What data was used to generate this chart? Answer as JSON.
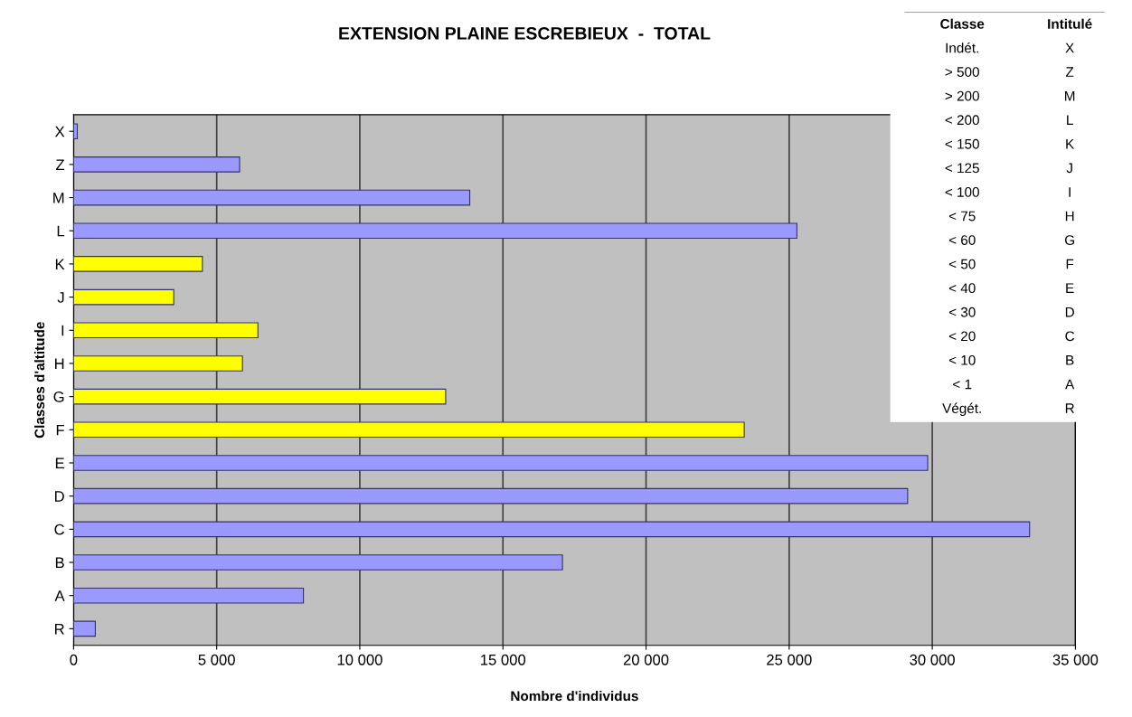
{
  "chart_data": {
    "type": "bar",
    "orientation": "horizontal",
    "title": "EXTENSION PLAINE ESCREBIEUX  -  TOTAL",
    "xlabel": "Nombre d'individus",
    "ylabel": "Classes d'altitude",
    "categories": [
      "X",
      "Z",
      "M",
      "L",
      "K",
      "J",
      "I",
      "H",
      "G",
      "F",
      "E",
      "D",
      "C",
      "B",
      "A",
      "R"
    ],
    "values": [
      130,
      5800,
      13840,
      25270,
      4500,
      3500,
      6440,
      5900,
      13000,
      23430,
      29840,
      29140,
      33400,
      17080,
      8030,
      760
    ],
    "colors": [
      "#9999ff",
      "#9999ff",
      "#9999ff",
      "#9999ff",
      "#ffff00",
      "#ffff00",
      "#ffff00",
      "#ffff00",
      "#ffff00",
      "#ffff00",
      "#9999ff",
      "#9999ff",
      "#9999ff",
      "#9999ff",
      "#9999ff",
      "#9999ff"
    ],
    "xlim": [
      0,
      35000
    ],
    "xticks": [
      0,
      {
        "value": 5000,
        "label": "5 000"
      },
      {
        "value": 10000,
        "label": "10 000"
      },
      {
        "value": 15000,
        "label": "15 000"
      },
      {
        "value": 20000,
        "label": "20 000"
      },
      {
        "value": 25000,
        "label": "25 000"
      },
      {
        "value": 30000,
        "label": "30 000"
      },
      {
        "value": 35000,
        "label": "35 000"
      }
    ],
    "grid": "x",
    "annotations": [
      "Classe",
      "Intitulé",
      "Indét.",
      "X",
      "> 500",
      "Z",
      "> 200",
      "M",
      "< 200",
      "L",
      "< 150",
      "K",
      "< 125",
      "J",
      "< 100",
      "I",
      "< 75",
      "H",
      "< 60",
      "G",
      "< 50",
      "F",
      "< 40",
      "E",
      "< 30",
      "D",
      "< 20",
      "C",
      "< 10",
      "B",
      "< 1",
      "A",
      "Végét.",
      "R"
    ]
  }
}
